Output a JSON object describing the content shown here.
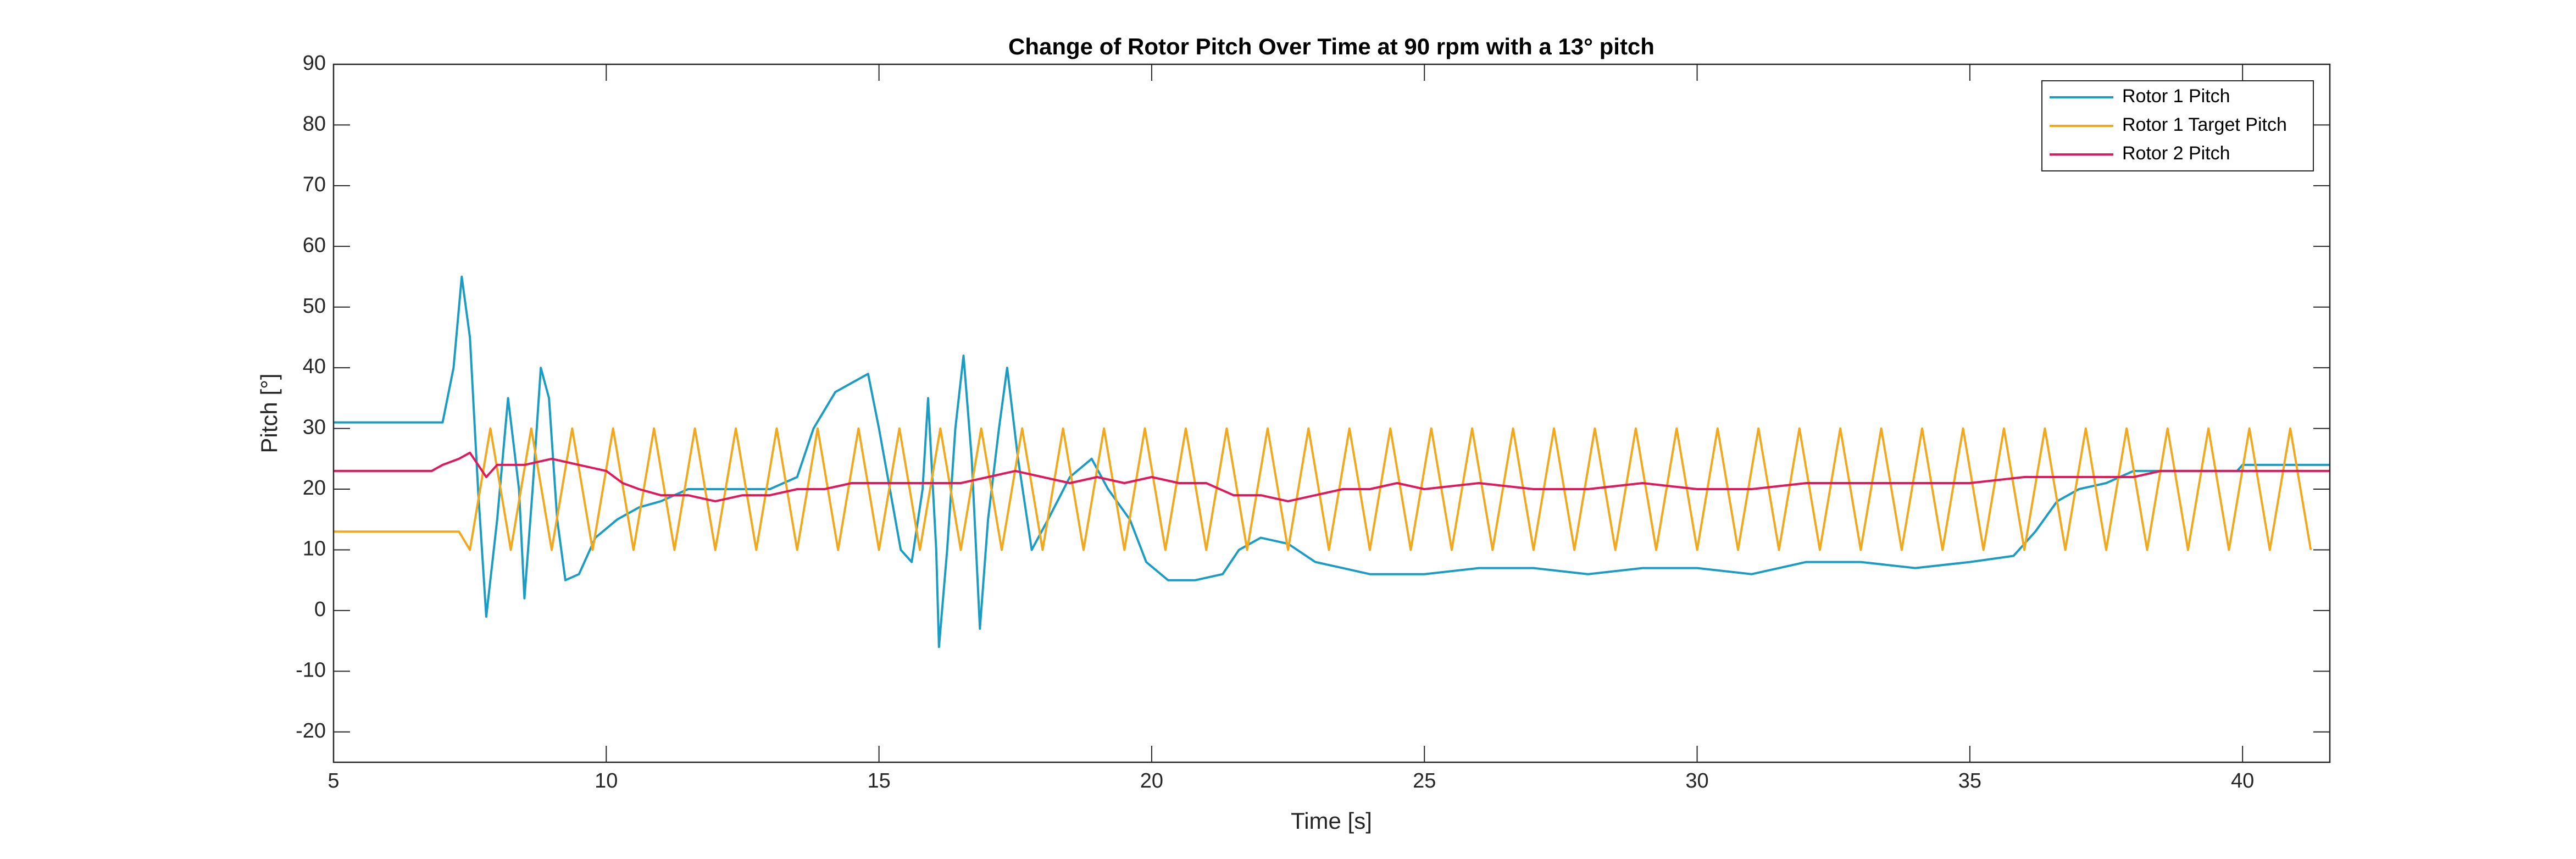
{
  "chart_data": {
    "type": "line",
    "title": "Change of Rotor Pitch Over Time at 90 rpm with a 13° pitch",
    "x_label": "Time [s]",
    "y_label": "Pitch [°]",
    "xlim": [
      5,
      41.6
    ],
    "ylim": [
      -25,
      90
    ],
    "xticks": [
      5,
      10,
      15,
      20,
      25,
      30,
      35,
      40
    ],
    "yticks": [
      -20,
      -10,
      0,
      10,
      20,
      30,
      40,
      50,
      60,
      70,
      80,
      90
    ],
    "grid": false,
    "legend": "upper right",
    "series": [
      {
        "name": "Rotor 1 Pitch",
        "color": "#1a9cc4",
        "x": [
          5,
          7,
          7.2,
          7.35,
          7.5,
          7.65,
          7.8,
          8.0,
          8.2,
          8.4,
          8.5,
          8.65,
          8.8,
          8.95,
          9.1,
          9.25,
          9.5,
          9.8,
          10.2,
          10.6,
          11,
          11.5,
          12,
          12.5,
          13,
          13.5,
          13.8,
          14.2,
          14.6,
          14.8,
          15,
          15.2,
          15.4,
          15.6,
          15.8,
          15.9,
          16.05,
          16.1,
          16.25,
          16.4,
          16.55,
          16.7,
          16.85,
          17.0,
          17.2,
          17.35,
          17.55,
          17.8,
          18.1,
          18.5,
          18.9,
          19.2,
          19.6,
          19.9,
          20.3,
          20.8,
          21.3,
          21.6,
          22,
          22.5,
          23,
          23.5,
          24,
          25,
          26,
          27,
          28,
          29,
          30,
          31,
          32,
          33,
          34,
          35,
          35.8,
          36.2,
          36.6,
          37,
          37.5,
          38,
          38.5,
          39,
          39.9,
          40,
          41.6
        ],
        "values": [
          31,
          31,
          40,
          55,
          45,
          20,
          -1,
          15,
          35,
          20,
          2,
          20,
          40,
          35,
          15,
          5,
          6,
          12,
          15,
          17,
          18,
          20,
          20,
          20,
          20,
          22,
          30,
          36,
          38,
          39,
          30,
          20,
          10,
          8,
          20,
          35,
          10,
          -6,
          10,
          30,
          42,
          25,
          -3,
          15,
          30,
          40,
          25,
          10,
          15,
          22,
          25,
          20,
          15,
          8,
          5,
          5,
          6,
          10,
          12,
          11,
          8,
          7,
          6,
          6,
          7,
          7,
          6,
          7,
          7,
          6,
          8,
          8,
          7,
          8,
          9,
          13,
          18,
          20,
          21,
          23,
          23,
          23,
          23,
          24,
          24
        ]
      },
      {
        "name": "Rotor 1 Target Pitch",
        "color": "#f2a81d",
        "x": [
          5,
          7.3,
          7.5,
          7.875,
          8.25,
          8.625,
          9,
          9.375,
          9.75,
          10.125,
          10.5,
          10.875,
          11.25,
          11.625,
          12,
          12.375,
          12.75,
          13.125,
          13.5,
          13.875,
          14.25,
          14.625,
          15,
          15.375,
          15.75,
          16.125,
          16.5,
          16.875,
          17.25,
          17.625,
          18,
          18.375,
          18.75,
          19.125,
          19.5,
          19.875,
          20.25,
          20.625,
          21,
          21.375,
          21.75,
          22.125,
          22.5,
          22.875,
          23.25,
          23.625,
          24,
          24.375,
          24.75,
          25.125,
          25.5,
          25.875,
          26.25,
          26.625,
          27,
          27.375,
          27.75,
          28.125,
          28.5,
          28.875,
          29.25,
          29.625,
          30,
          30.375,
          30.75,
          31.125,
          31.5,
          31.875,
          32.25,
          32.625,
          33,
          33.375,
          33.75,
          34.125,
          34.5,
          34.875,
          35.25,
          35.625,
          36,
          36.375,
          36.75,
          37.125,
          37.5,
          37.875,
          38.25,
          38.625,
          39,
          39.375,
          39.75,
          40.125,
          40.5,
          40.875,
          41.25
        ],
        "values": [
          13,
          13,
          10,
          30,
          10,
          30,
          10,
          30,
          10,
          30,
          10,
          30,
          10,
          30,
          10,
          30,
          10,
          30,
          10,
          30,
          10,
          30,
          10,
          30,
          10,
          30,
          10,
          30,
          10,
          30,
          10,
          30,
          10,
          30,
          10,
          30,
          10,
          30,
          10,
          30,
          10,
          30,
          10,
          30,
          10,
          30,
          10,
          30,
          10,
          30,
          10,
          30,
          10,
          30,
          10,
          30,
          10,
          30,
          10,
          30,
          10,
          30,
          10,
          30,
          10,
          30,
          10,
          30,
          10,
          30,
          10,
          30,
          10,
          30,
          10,
          30,
          10,
          30,
          10,
          30,
          10,
          30,
          10,
          30,
          10,
          30,
          10,
          30,
          10,
          30,
          10,
          30,
          10
        ]
      },
      {
        "name": "Rotor 2 Pitch",
        "color": "#e0195a",
        "x": [
          5,
          6.8,
          7,
          7.3,
          7.5,
          7.8,
          8,
          8.5,
          9,
          9.5,
          10,
          10.3,
          10.6,
          11,
          11.5,
          12,
          12.5,
          13,
          13.5,
          14,
          14.5,
          15,
          15.5,
          16,
          16.5,
          17,
          17.5,
          18,
          18.5,
          19,
          19.5,
          20,
          20.5,
          21,
          21.5,
          22,
          22.5,
          23,
          23.5,
          24,
          24.5,
          25,
          26,
          27,
          28,
          29,
          30,
          31,
          32,
          33,
          34,
          35,
          36,
          37,
          38,
          38.5,
          39,
          41.6
        ],
        "values": [
          23,
          23,
          24,
          25,
          26,
          22,
          24,
          24,
          25,
          24,
          23,
          21,
          20,
          19,
          19,
          18,
          19,
          19,
          20,
          20,
          21,
          21,
          21,
          21,
          21,
          22,
          23,
          22,
          21,
          22,
          21,
          22,
          21,
          21,
          19,
          19,
          18,
          19,
          20,
          20,
          21,
          20,
          21,
          20,
          20,
          21,
          20,
          20,
          21,
          21,
          21,
          21,
          22,
          22,
          22,
          23,
          23,
          23
        ]
      }
    ]
  }
}
